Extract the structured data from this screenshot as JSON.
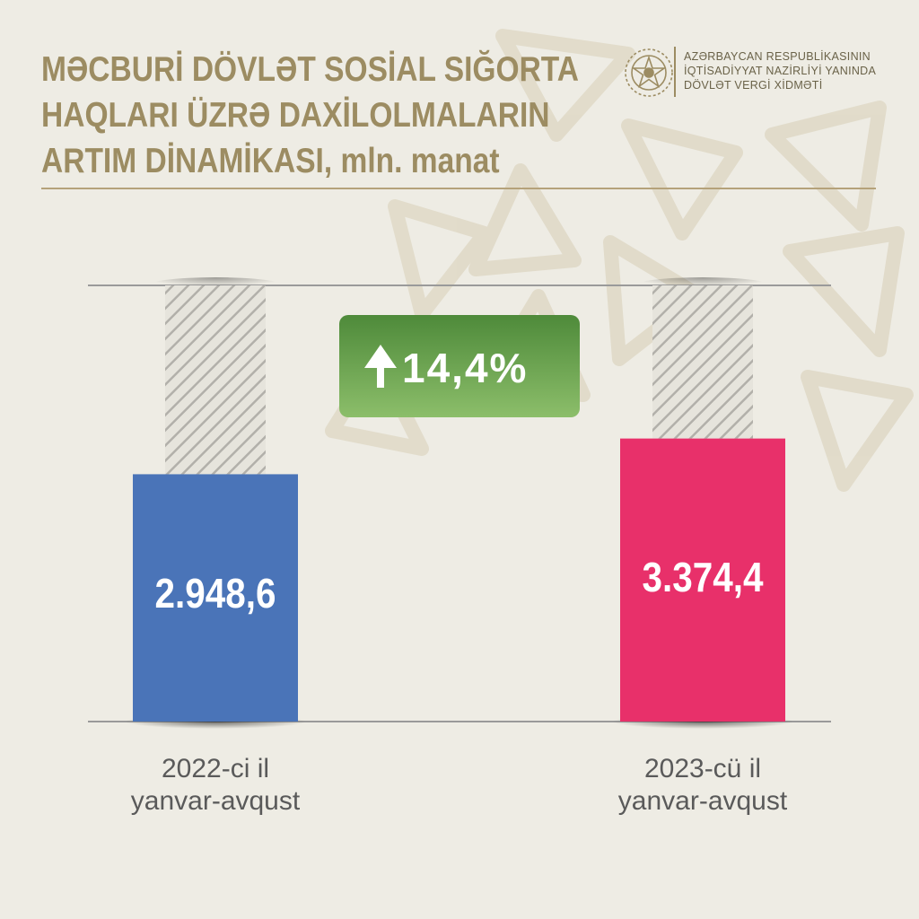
{
  "title_lines": [
    "MƏCBURİ DÖVLƏT SOSİAL SIĞORTA",
    "HAQLARI ÜZRƏ DAXİLOLMALARIN",
    "ARTIM DİNAMİKASI, mln. manat"
  ],
  "organization_lines": [
    "AZƏRBAYCAN RESPUBLİKASININ",
    "İQTİSADİYYAT NAZİRLİYİ YANINDA",
    "DÖVLƏT VERGİ XİDMƏTİ"
  ],
  "icons": [
    "state-emblem-icon",
    "arrow-up-icon"
  ],
  "colors": {
    "background": "#eeece4",
    "title": "#9c8c62",
    "bar_2022": "#4a74b8",
    "bar_2023": "#e8306a",
    "badge_top": "#4e8a3a",
    "badge_bottom": "#8cbe6a"
  },
  "chart_data": {
    "type": "bar",
    "categories": [
      [
        "2022-ci il",
        "yanvar-avqust"
      ],
      [
        "2023-cü il",
        "yanvar-avqust"
      ]
    ],
    "values": [
      2948.6,
      3374.4
    ],
    "value_labels": [
      "2.948,6",
      "3.374,4"
    ],
    "growth_label": "14,4%",
    "growth_direction": "up",
    "ylim": [
      0,
      5200
    ]
  }
}
